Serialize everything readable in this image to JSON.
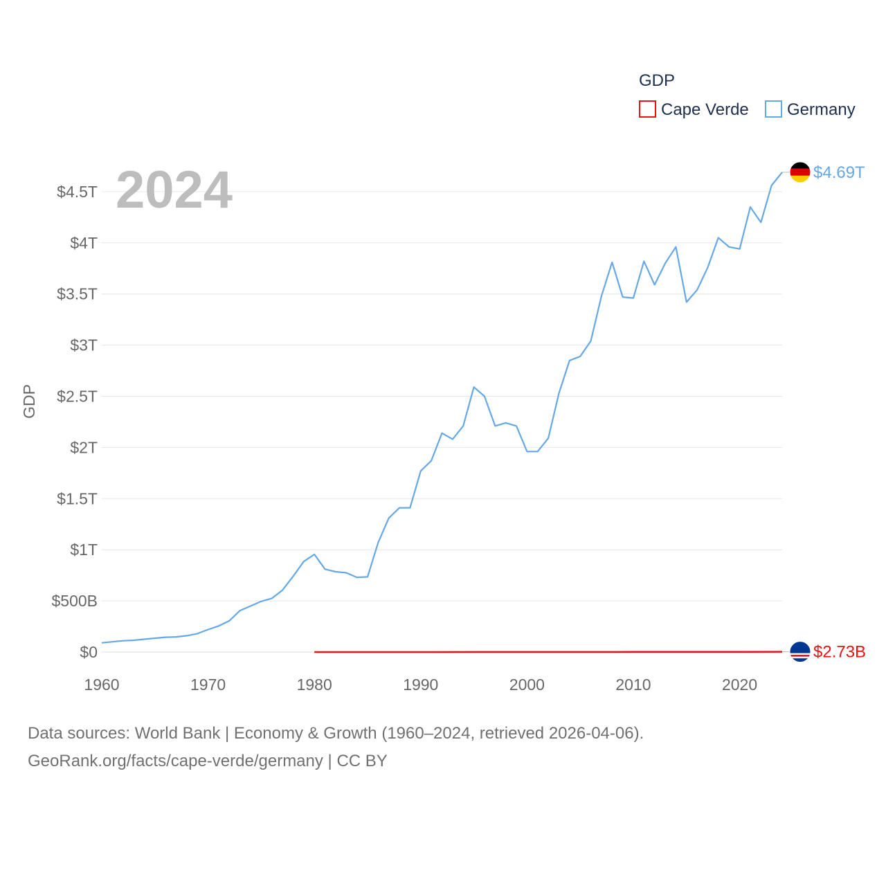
{
  "chart_data": {
    "type": "line",
    "title": "GDP",
    "year_label": "2024",
    "ylabel": "GDP",
    "xlabel": "",
    "xlim": [
      1960,
      2024
    ],
    "ylim": [
      0,
      4.85
    ],
    "grid": true,
    "legend_position": "top-right",
    "x_ticks": [
      1960,
      1970,
      1980,
      1990,
      2000,
      2010,
      2020
    ],
    "x_tick_labels": [
      "1960",
      "1970",
      "1980",
      "1990",
      "2000",
      "2010",
      "2020"
    ],
    "y_ticks": [
      0,
      0.5,
      1,
      1.5,
      2,
      2.5,
      3,
      3.5,
      4,
      4.5
    ],
    "y_tick_labels": [
      "$0",
      "$500B",
      "$1T",
      "$1.5T",
      "$2T",
      "$2.5T",
      "$3T",
      "$3.5T",
      "$4T",
      "$4.5T"
    ],
    "series": [
      {
        "name": "Cape Verde",
        "color": "#ee1111",
        "end_label": "$2.73B",
        "flag_icon": "cape-verde-flag-icon",
        "x": [
          1980,
          1985,
          1990,
          1995,
          2000,
          2005,
          2010,
          2015,
          2020,
          2024
        ],
        "values": [
          0.0001,
          0.00015,
          0.0003,
          0.0006,
          0.0005,
          0.001,
          0.0016,
          0.0016,
          0.0017,
          0.0027
        ]
      },
      {
        "name": "Germany",
        "color": "#64a8e8",
        "end_label": "$4.69T",
        "flag_icon": "germany-flag-icon",
        "x": [
          1960,
          1961,
          1962,
          1963,
          1964,
          1965,
          1966,
          1967,
          1968,
          1969,
          1970,
          1971,
          1972,
          1973,
          1974,
          1975,
          1976,
          1977,
          1978,
          1979,
          1980,
          1981,
          1982,
          1983,
          1984,
          1985,
          1986,
          1987,
          1988,
          1989,
          1990,
          1991,
          1992,
          1993,
          1994,
          1995,
          1996,
          1997,
          1998,
          1999,
          2000,
          2001,
          2002,
          2003,
          2004,
          2005,
          2006,
          2007,
          2008,
          2009,
          2010,
          2011,
          2012,
          2013,
          2014,
          2015,
          2016,
          2017,
          2018,
          2019,
          2020,
          2021,
          2022,
          2023,
          2024
        ],
        "values": [
          0.09,
          0.1,
          0.11,
          0.115,
          0.125,
          0.135,
          0.145,
          0.148,
          0.16,
          0.18,
          0.22,
          0.255,
          0.305,
          0.405,
          0.45,
          0.495,
          0.525,
          0.605,
          0.74,
          0.885,
          0.955,
          0.81,
          0.785,
          0.775,
          0.73,
          0.735,
          1.07,
          1.31,
          1.41,
          1.41,
          1.77,
          1.87,
          2.14,
          2.08,
          2.21,
          2.59,
          2.5,
          2.21,
          2.24,
          2.21,
          1.96,
          1.96,
          2.09,
          2.53,
          2.85,
          2.89,
          3.04,
          3.48,
          3.81,
          3.47,
          3.46,
          3.82,
          3.59,
          3.8,
          3.96,
          3.42,
          3.54,
          3.76,
          4.05,
          3.96,
          3.94,
          4.35,
          4.2,
          4.56,
          4.69
        ]
      }
    ]
  },
  "footer": {
    "line1": "Data sources: World Bank | Economy & Growth (1960–2024, retrieved 2026-04-06).",
    "line2": "GeoRank.org/facts/cape-verde/germany | CC BY"
  }
}
